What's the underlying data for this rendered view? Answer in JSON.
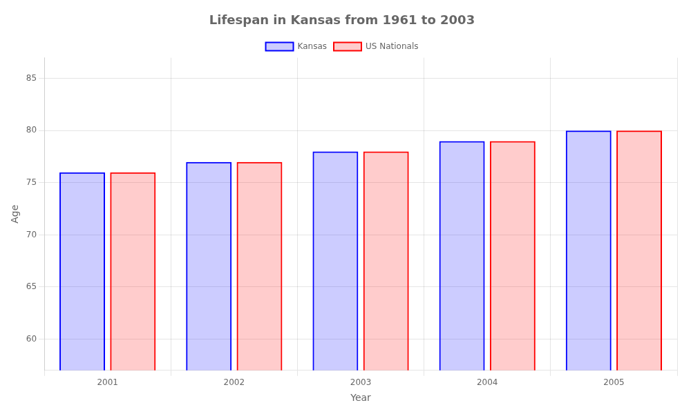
{
  "chart_data": {
    "type": "bar",
    "title": "Lifespan in Kansas from 1961 to 2003",
    "x_label": "Year",
    "y_label": "Age",
    "categories": [
      "2001",
      "2002",
      "2003",
      "2004",
      "2005"
    ],
    "series": [
      {
        "name": "Kansas",
        "color": "#0000ff",
        "values": [
          76,
          77,
          78,
          79,
          80
        ]
      },
      {
        "name": "US Nationals",
        "color": "#ff0000",
        "values": [
          76,
          77,
          78,
          79,
          80
        ]
      }
    ],
    "ylim": [
      57,
      87
    ],
    "yticks": [
      60,
      65,
      70,
      75,
      80,
      85
    ],
    "grid": true,
    "legend": "top"
  }
}
